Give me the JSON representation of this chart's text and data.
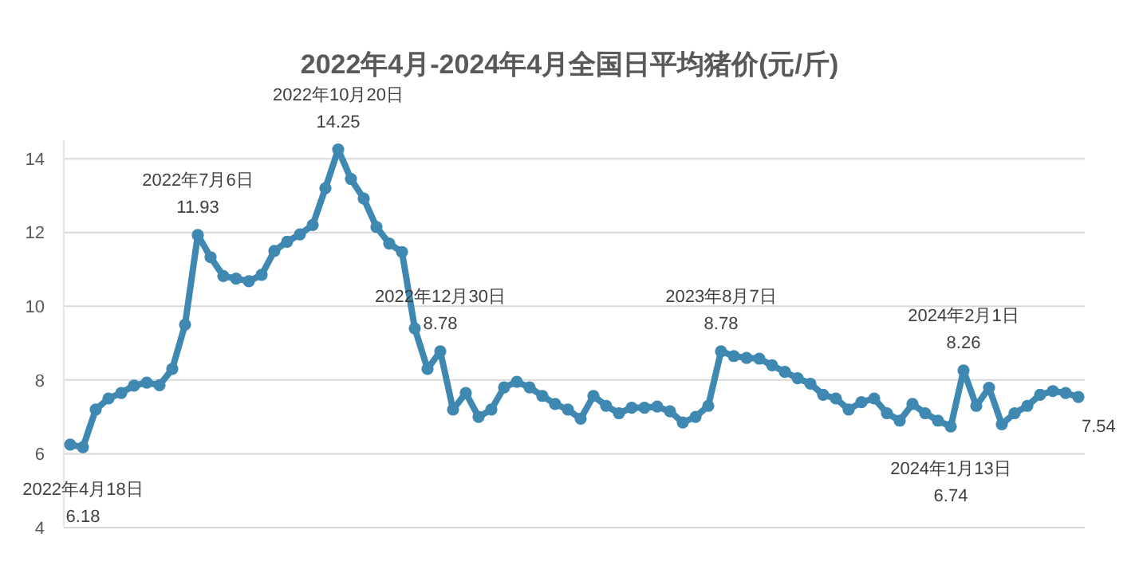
{
  "chart_data": {
    "type": "line",
    "title": "2022年4月-2024年4月全国日平均猪价(元/斤)",
    "marker": "circle",
    "grid": "y",
    "tick_labels": "y",
    "ylim": [
      4,
      14.5
    ],
    "yticks": [
      4,
      6,
      8,
      10,
      12,
      14
    ],
    "categories": [
      null,
      null,
      null,
      null,
      null,
      null,
      null,
      null,
      null,
      null,
      null,
      null,
      null,
      null,
      null,
      null,
      null,
      null,
      null,
      null,
      null,
      null,
      null,
      null,
      null,
      null,
      null,
      null,
      null,
      null,
      null,
      null,
      null,
      null,
      null,
      null,
      null,
      null,
      null,
      null,
      null,
      null,
      null,
      null,
      null,
      null,
      null,
      null,
      null,
      null,
      null,
      null,
      null,
      null,
      null,
      null,
      null,
      null,
      null,
      null,
      null,
      null,
      null,
      null,
      null,
      null,
      null,
      null,
      null,
      null,
      null,
      null,
      null,
      null,
      null,
      null,
      null,
      null,
      null,
      null
    ],
    "series": [
      {
        "color": "#3f88b2",
        "values": [
          6.25,
          6.18,
          7.2,
          7.5,
          7.65,
          7.85,
          7.93,
          7.86,
          8.3,
          9.5,
          11.93,
          11.33,
          10.82,
          10.75,
          10.68,
          10.85,
          11.5,
          11.75,
          11.95,
          12.2,
          13.2,
          14.25,
          13.45,
          12.92,
          12.15,
          11.7,
          11.47,
          9.4,
          8.3,
          8.78,
          7.2,
          7.65,
          7.0,
          7.2,
          7.8,
          7.95,
          7.8,
          7.57,
          7.35,
          7.2,
          6.95,
          7.57,
          7.3,
          7.1,
          7.25,
          7.25,
          7.28,
          7.15,
          6.85,
          7.0,
          7.3,
          8.78,
          8.65,
          8.6,
          8.58,
          8.4,
          8.22,
          8.05,
          7.9,
          7.6,
          7.5,
          7.2,
          7.4,
          7.5,
          7.1,
          6.9,
          7.35,
          7.1,
          6.9,
          6.74,
          8.26,
          7.3,
          7.79,
          6.8,
          7.1,
          7.3,
          7.6,
          7.7,
          7.65,
          7.54
        ]
      }
    ],
    "annotations": [
      {
        "text": "2022年4月18日\n6.18",
        "y": 6.18
      },
      {
        "text": "2022年7月6日\n11.93",
        "y": 11.93
      },
      {
        "text": "2022年10月20日\n14.25",
        "y": 14.25
      },
      {
        "text": "2022年12月30日\n8.78",
        "y": 8.78
      },
      {
        "text": "2023年8月7日\n8.78",
        "y": 8.78
      },
      {
        "text": "2024年1月13日\n6.74",
        "y": 6.74
      },
      {
        "text": "2024年2月1日\n8.26",
        "y": 8.26
      },
      "7.54"
    ]
  }
}
